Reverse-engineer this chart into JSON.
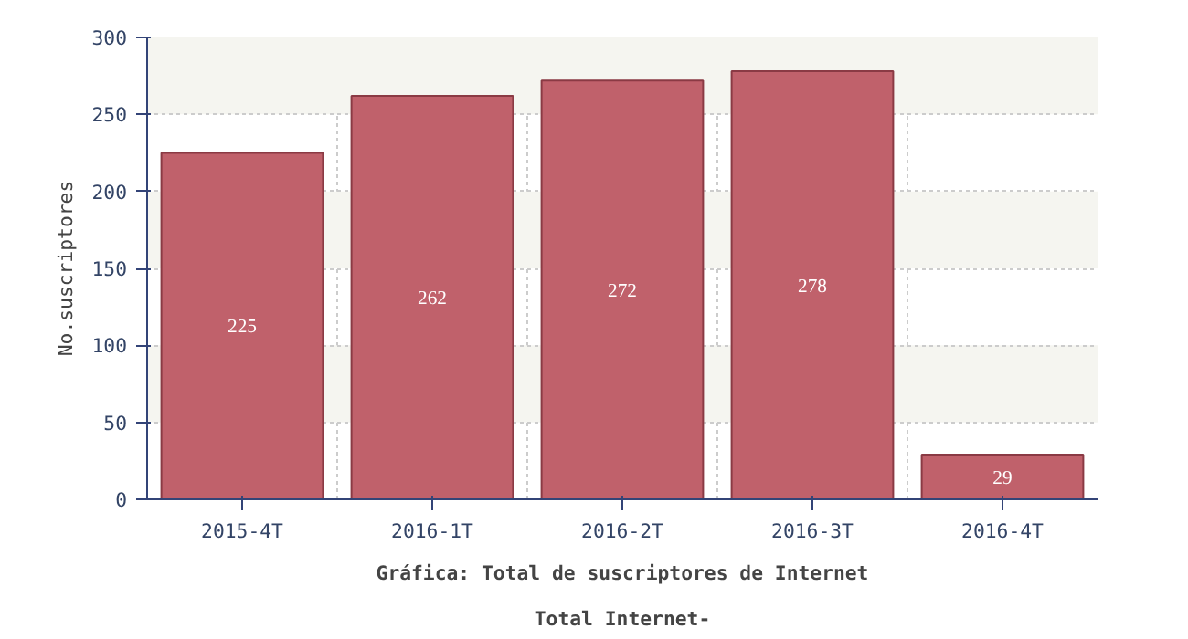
{
  "chart_data": {
    "type": "bar",
    "title": "Gráfica: Total de suscriptores de Internet",
    "subtitle": "Total Internet-",
    "ylabel": "No.suscriptores",
    "categories": [
      "2015-4T",
      "2016-1T",
      "2016-2T",
      "2016-3T",
      "2016-4T"
    ],
    "values": [
      225,
      262,
      272,
      278,
      29
    ],
    "color": "#c0616b",
    "ylim": [
      0,
      300
    ],
    "yticks": [
      0,
      50,
      100,
      150,
      200,
      250,
      300
    ],
    "grid": true,
    "data_labels": true
  }
}
